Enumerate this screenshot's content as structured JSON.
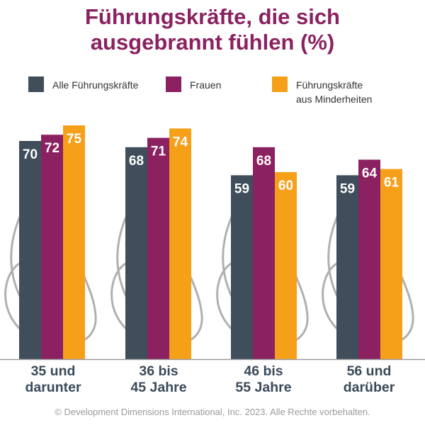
{
  "title_line1": "Führungskräfte, die sich",
  "title_line2": "ausgebrannt fühlen (%)",
  "footer": "© Development Dimensions International, Inc. 2023. Alle Rechte vorbehalten.",
  "colors": {
    "title": "#8b2160",
    "all_leaders": "#3f4e5a",
    "women": "#8b2160",
    "minority_leaders": "#f6a01a",
    "flame_outline": "#b0b0b0",
    "axis": "#9a9a9a"
  },
  "icons": [
    "flame-outline-icon"
  ],
  "chart_data": {
    "type": "bar",
    "title": "Führungskräfte, die sich ausgebrannt fühlen (%)",
    "xlabel": "",
    "ylabel": "",
    "ylim": [
      0,
      85
    ],
    "grid": false,
    "legend_position": "top",
    "categories": [
      "35 und\ndarunter",
      "36 bis\n45 Jahre",
      "46 bis\n55 Jahre",
      "56 und\ndarüber"
    ],
    "series": [
      {
        "name": "Alle Führungskräfte",
        "color": "#3f4e5a",
        "values": [
          70,
          68,
          59,
          59
        ]
      },
      {
        "name": "Frauen",
        "color": "#8b2160",
        "values": [
          72,
          71,
          68,
          64
        ]
      },
      {
        "name": "Führungskräfte\naus Minderheiten",
        "color": "#f6a01a",
        "values": [
          75,
          74,
          60,
          61
        ]
      }
    ]
  }
}
